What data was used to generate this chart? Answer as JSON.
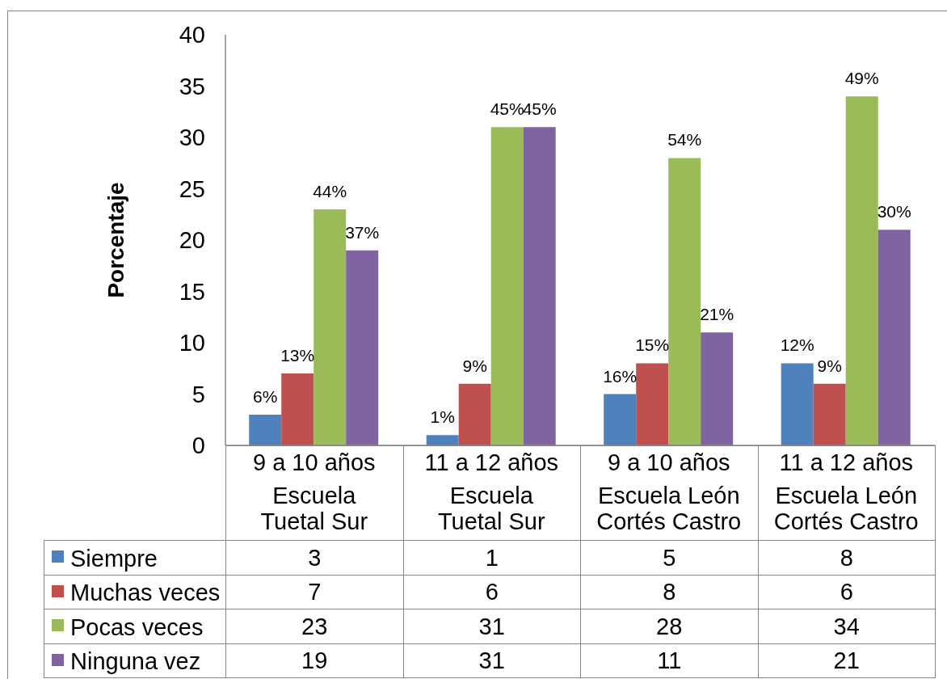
{
  "chart_data": {
    "type": "bar",
    "ylabel": "Porcentaje",
    "categories": [
      "9 a 10 años\nEscuela\nTuetal Sur",
      "11 a 12 años\nEscuela\nTuetal Sur",
      "9 a 10 años\nEscuela León\nCortés Castro",
      "11 a 12 años\nEscuela León\nCortés Castro"
    ],
    "series": [
      {
        "name": "Siempre",
        "color": "#4f81bd",
        "values": [
          3,
          1,
          5,
          8
        ]
      },
      {
        "name": "Muchas veces",
        "color": "#c0504d",
        "values": [
          7,
          6,
          8,
          6
        ]
      },
      {
        "name": "Pocas veces",
        "color": "#9bbb59",
        "values": [
          23,
          31,
          28,
          34
        ]
      },
      {
        "name": "Ninguna vez",
        "color": "#8064a2",
        "values": [
          19,
          31,
          11,
          21
        ]
      }
    ],
    "annotations": [
      {
        "text": "6%",
        "x": "9 a 10 años\nEscuela\nTuetal Sur",
        "y": 3
      },
      {
        "text": "13%",
        "x": "9 a 10 años\nEscuela\nTuetal Sur",
        "y": 7
      },
      {
        "text": "44%",
        "x": "9 a 10 años\nEscuela\nTuetal Sur",
        "y": 23
      },
      {
        "text": "37%",
        "x": "9 a 10 años\nEscuela\nTuetal Sur",
        "y": 19
      },
      {
        "text": "1%",
        "x": "11 a 12 años\nEscuela\nTuetal Sur",
        "y": 1
      },
      {
        "text": "9%",
        "x": "11 a 12 años\nEscuela\nTuetal Sur",
        "y": 6
      },
      {
        "text": "45%",
        "x": "11 a 12 años\nEscuela\nTuetal Sur",
        "y": 31
      },
      {
        "text": "45%",
        "x": "11 a 12 años\nEscuela\nTuetal Sur",
        "y": 31
      },
      {
        "text": "16%",
        "x": "9 a 10 años\nEscuela León\nCortés Castro",
        "y": 5
      },
      {
        "text": "15%",
        "x": "9 a 10 años\nEscuela León\nCortés Castro",
        "y": 8
      },
      {
        "text": "54%",
        "x": "9 a 10 años\nEscuela León\nCortés Castro",
        "y": 28
      },
      {
        "text": "21%",
        "x": "9 a 10 años\nEscuela León\nCortés Castro",
        "y": 11
      },
      {
        "text": "12%",
        "x": "11 a 12 años\nEscuela León\nCortés Castro",
        "y": 8
      },
      {
        "text": "9%",
        "x": "11 a 12 años\nEscuela León\nCortés Castro",
        "y": 6
      },
      {
        "text": "49%",
        "x": "11 a 12 años\nEscuela León\nCortés Castro",
        "y": 34
      },
      {
        "text": "30%",
        "x": "11 a 12 años\nEscuela León\nCortés Castro",
        "y": 21
      }
    ],
    "ylim": [
      0,
      40
    ],
    "yticks": [
      0,
      5,
      10,
      15,
      20,
      25,
      30,
      35,
      40
    ],
    "legend": "bottom",
    "data_labels": true
  }
}
